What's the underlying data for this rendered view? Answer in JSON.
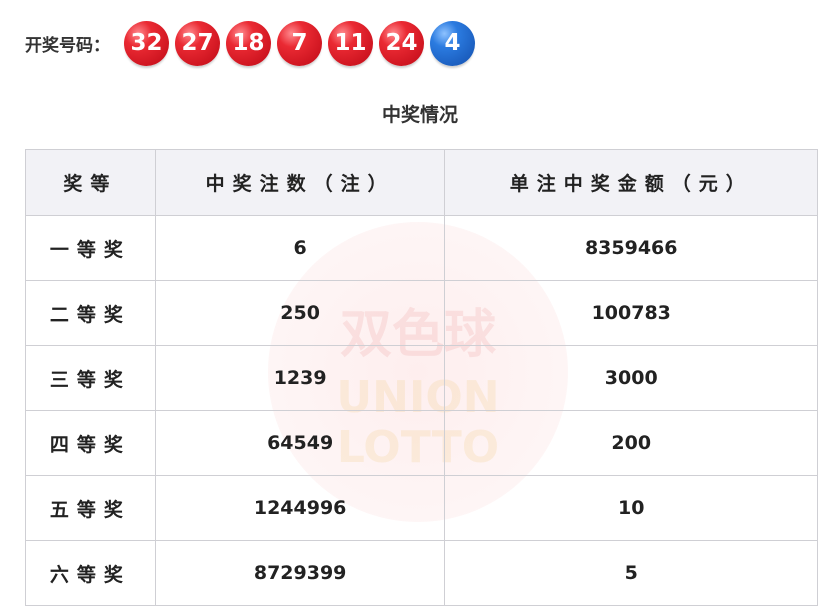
{
  "draw": {
    "label": "开奖号码：",
    "red_balls": [
      "32",
      "27",
      "18",
      "7",
      "11",
      "24"
    ],
    "blue_ball": "4",
    "colors": {
      "red": "#e02630",
      "blue": "#2b7be0"
    }
  },
  "section_title": "中奖情况",
  "watermark": {
    "cn": "双色球",
    "en1": "UNION",
    "en2": "LOTTO"
  },
  "table": {
    "headers": [
      "奖等",
      "中奖注数（注）",
      "单注中奖金额（元）"
    ],
    "rows": [
      {
        "level": "一等奖",
        "count": "6",
        "amount": "8359466"
      },
      {
        "level": "二等奖",
        "count": "250",
        "amount": "100783"
      },
      {
        "level": "三等奖",
        "count": "1239",
        "amount": "3000"
      },
      {
        "level": "四等奖",
        "count": "64549",
        "amount": "200"
      },
      {
        "level": "五等奖",
        "count": "1244996",
        "amount": "10"
      },
      {
        "level": "六等奖",
        "count": "8729399",
        "amount": "5"
      }
    ]
  }
}
